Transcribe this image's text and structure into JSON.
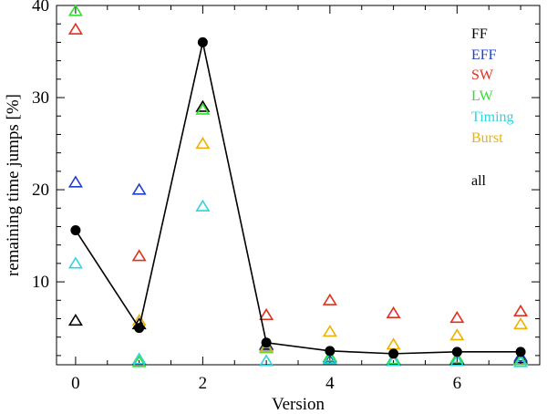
{
  "chart_data": {
    "type": "scatter",
    "xlabel": "Version",
    "ylabel": "remaining time jumps [%]",
    "xlim": [
      -0.3,
      7.3
    ],
    "ylim": [
      1,
      40
    ],
    "xticks": [
      0,
      2,
      4,
      6
    ],
    "yticks": [
      10,
      20,
      30,
      40
    ],
    "legend_position": "top-right",
    "grid": false,
    "series": [
      {
        "name": "FF",
        "marker": "triangle",
        "color": "#000000",
        "points": [
          [
            0,
            5.8
          ],
          [
            1,
            5.4
          ],
          [
            2,
            29.0
          ],
          [
            3,
            3.2
          ],
          [
            4,
            1.5
          ],
          [
            5,
            1.4
          ],
          [
            6,
            1.6
          ],
          [
            7,
            1.7
          ]
        ]
      },
      {
        "name": "EFF",
        "marker": "triangle",
        "color": "#1f3fcf",
        "points": [
          [
            0,
            20.8
          ],
          [
            1,
            20.0
          ],
          [
            3,
            3.1
          ],
          [
            4,
            1.8
          ],
          [
            5,
            1.6
          ],
          [
            6,
            1.7
          ],
          [
            7,
            1.9
          ]
        ]
      },
      {
        "name": "SW",
        "marker": "triangle",
        "color": "#e0301e",
        "points": [
          [
            0,
            37.4
          ],
          [
            1,
            12.8
          ],
          [
            3,
            6.4
          ],
          [
            4,
            8.0
          ],
          [
            5,
            6.6
          ],
          [
            6,
            6.1
          ],
          [
            7,
            6.8
          ]
        ]
      },
      {
        "name": "LW",
        "marker": "triangle",
        "color": "#2fe02f",
        "points": [
          [
            0,
            39.4
          ],
          [
            1,
            1.3
          ],
          [
            2,
            28.7
          ],
          [
            3,
            2.8
          ],
          [
            4,
            1.9
          ],
          [
            5,
            1.6
          ],
          [
            6,
            1.7
          ],
          [
            7,
            1.5
          ]
        ]
      },
      {
        "name": "Timing",
        "marker": "triangle",
        "color": "#2fd4e0",
        "points": [
          [
            0,
            12.0
          ],
          [
            1,
            1.6
          ],
          [
            2,
            18.2
          ],
          [
            3,
            1.4
          ],
          [
            4,
            1.6
          ],
          [
            5,
            1.4
          ],
          [
            6,
            1.4
          ],
          [
            7,
            1.3
          ]
        ]
      },
      {
        "name": "Burst",
        "marker": "triangle",
        "color": "#f0b000",
        "points": [
          [
            1,
            5.8
          ],
          [
            2,
            25.0
          ],
          [
            3,
            2.9
          ],
          [
            4,
            4.6
          ],
          [
            5,
            3.2
          ],
          [
            6,
            4.2
          ],
          [
            7,
            5.4
          ]
        ]
      },
      {
        "name": "all",
        "marker": "dot-line",
        "color": "#000000",
        "points": [
          [
            0,
            15.6
          ],
          [
            1,
            5.0
          ],
          [
            2,
            36.0
          ],
          [
            3,
            3.4
          ],
          [
            4,
            2.5
          ],
          [
            5,
            2.2
          ],
          [
            6,
            2.4
          ],
          [
            7,
            2.4
          ]
        ]
      }
    ]
  }
}
